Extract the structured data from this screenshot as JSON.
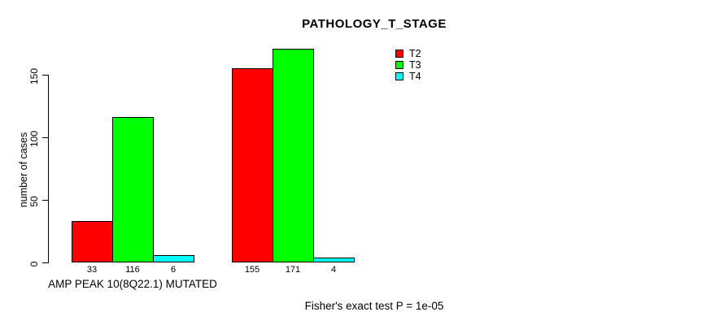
{
  "chart_data": {
    "type": "bar",
    "title": "PATHOLOGY_T_STAGE",
    "xlabel": "",
    "ylabel": "number of cases",
    "ylim": [
      0,
      175
    ],
    "yticks": [
      0,
      50,
      100,
      150
    ],
    "grid": false,
    "legend_position": "top-right",
    "categories": [
      "AMP PEAK 10(8Q22.1) MUTATED",
      ""
    ],
    "series": [
      {
        "name": "T2",
        "color": "#ff0000",
        "values": [
          33,
          155
        ]
      },
      {
        "name": "T3",
        "color": "#00ff00",
        "values": [
          116,
          171
        ]
      },
      {
        "name": "T4",
        "color": "#00ffff",
        "values": [
          6,
          4
        ]
      }
    ],
    "bar_border_color": "#000000",
    "annotation": "Fisher's exact test P = 1e-05"
  }
}
